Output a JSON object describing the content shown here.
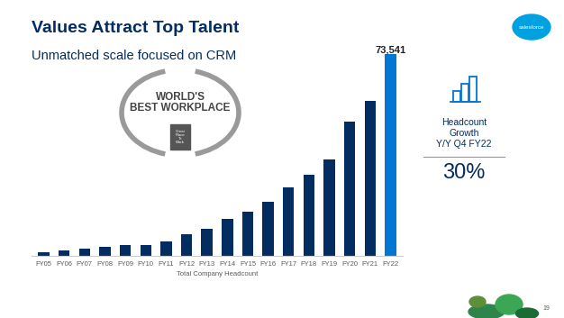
{
  "header": {
    "title": "Values Attract Top Talent",
    "subtitle": "Unmatched scale focused on CRM",
    "logo": "salesforce",
    "page": "19"
  },
  "badge": {
    "text": "WORLD'S\nBEST WORKPLACE",
    "seal": "Great\nPlace\nTo\nWork"
  },
  "callout": {
    "text": "Headcount\nGrowth\nY/Y Q4 FY22",
    "value": "30%"
  },
  "chart_data": {
    "type": "bar",
    "categories": [
      "FY05",
      "FY06",
      "FY07",
      "FY08",
      "FY09",
      "FY10",
      "FY11",
      "FY12",
      "FY13",
      "FY14",
      "FY15",
      "FY16",
      "FY17",
      "FY18",
      "FY19",
      "FY20",
      "FY21",
      "FY22"
    ],
    "values": [
      1300,
      2000,
      2600,
      3200,
      3900,
      4000,
      5300,
      7800,
      9800,
      13300,
      16200,
      19700,
      25000,
      29400,
      35000,
      49000,
      56600,
      73541
    ],
    "colors": [
      "#032d60",
      "#032d60",
      "#032d60",
      "#032d60",
      "#032d60",
      "#032d60",
      "#032d60",
      "#032d60",
      "#032d60",
      "#032d60",
      "#032d60",
      "#032d60",
      "#032d60",
      "#032d60",
      "#032d60",
      "#032d60",
      "#032d60",
      "#0176d3"
    ],
    "data_labels": true,
    "value_labels": [
      null,
      null,
      null,
      null,
      null,
      null,
      null,
      null,
      null,
      null,
      null,
      null,
      null,
      null,
      null,
      null,
      null,
      "73,541"
    ],
    "xlabel": "Total Company Headcount",
    "tick_labels": "x"
  }
}
